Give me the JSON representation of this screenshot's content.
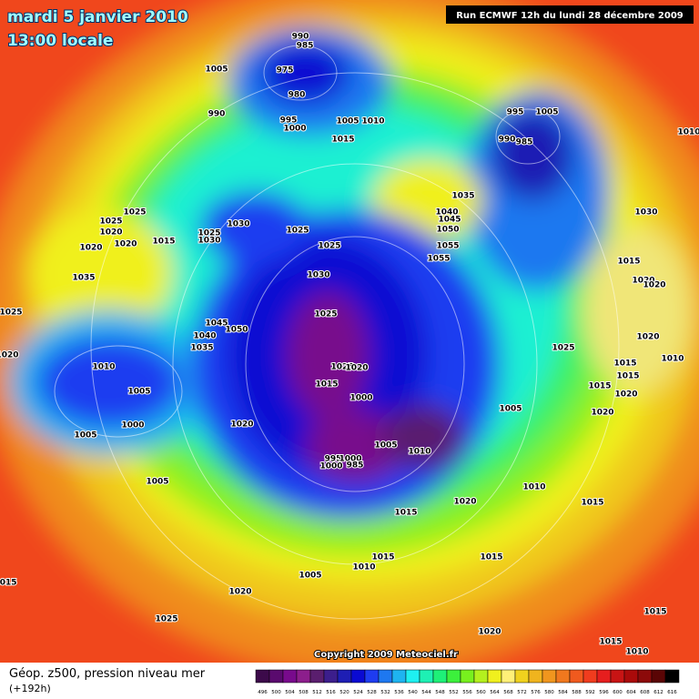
{
  "header": {
    "date": "mardi 5 janvier 2010",
    "time": "13:00 locale",
    "run": "Run ECMWF 12h du lundi 28 décembre 2009"
  },
  "copyright": "Copyright 2009 Meteociel.fr",
  "footer": {
    "title": "Géop. z500, pression niveau mer",
    "lead": "(+192h)"
  },
  "legend": {
    "ticks": [
      496,
      500,
      504,
      508,
      512,
      516,
      520,
      524,
      528,
      532,
      536,
      540,
      544,
      548,
      552,
      556,
      560,
      564,
      568,
      572,
      576,
      580,
      584,
      588,
      592,
      596,
      600,
      604,
      608,
      612,
      616
    ],
    "colors": [
      "#3c0a4a",
      "#5a0a6e",
      "#780a8c",
      "#8c1e8c",
      "#5a1e6e",
      "#3c1e8c",
      "#1e1eb4",
      "#0a0ad2",
      "#1e3cf0",
      "#1e78f0",
      "#1eb4f0",
      "#1ef0f0",
      "#1ef0b4",
      "#1ef078",
      "#3cf03c",
      "#78f01e",
      "#b4f01e",
      "#f0f01e",
      "#fff078",
      "#f0d21e",
      "#f0b41e",
      "#f0961e",
      "#f0781e",
      "#f05a1e",
      "#f03c1e",
      "#e61e1e",
      "#c81414",
      "#aa0a0a",
      "#8c0a0a",
      "#5a0505",
      "#000000"
    ]
  },
  "isobars": {
    "labels": [
      990,
      985,
      975,
      980,
      1005,
      990,
      995,
      1000,
      1005,
      1010,
      1015,
      995,
      1005,
      990,
      985,
      1010,
      1035,
      1040,
      1045,
      1050,
      1055,
      1055,
      1030,
      1025,
      1025,
      1020,
      1020,
      1020,
      1015,
      1030,
      1025,
      1030,
      1025,
      1025,
      1030,
      1035,
      1025,
      1025,
      1045,
      1050,
      1040,
      1035,
      1020,
      1010,
      1025,
      1020,
      1015,
      1000,
      1005,
      1000,
      1005,
      1020,
      995,
      1000,
      985,
      1000,
      1005,
      1010,
      1005,
      1025,
      1015,
      1020,
      1020,
      1020,
      1015,
      1015,
      1020,
      1010,
      1015,
      1020,
      1010,
      1015,
      1020,
      1015,
      1005,
      1015,
      1010,
      1015,
      1005,
      1020,
      1025,
      1015,
      1020,
      1015,
      1015,
      1010
    ]
  }
}
